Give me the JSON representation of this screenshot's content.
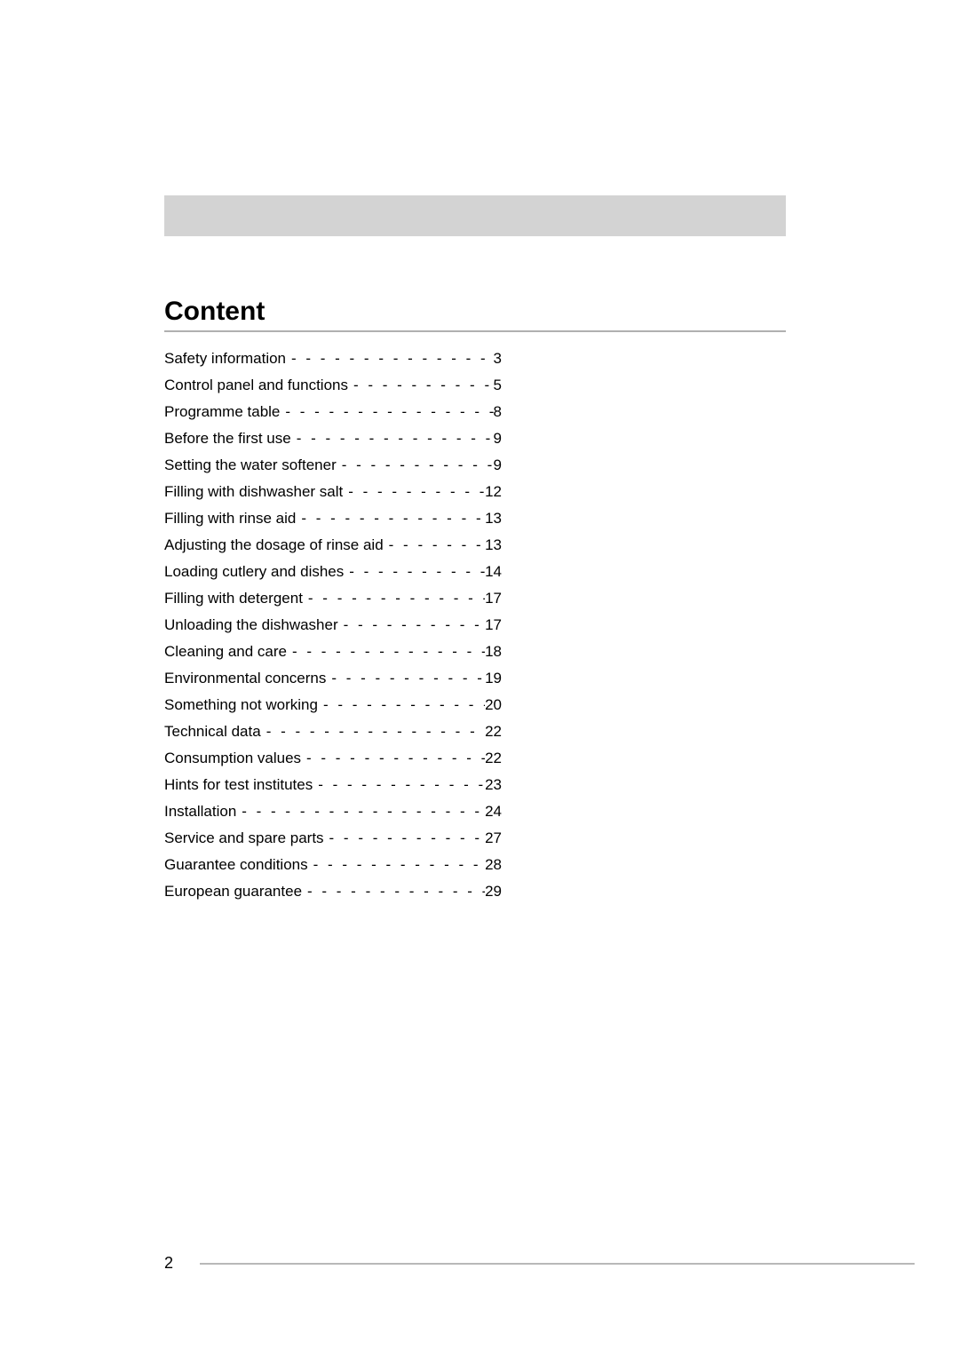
{
  "heading": "Content",
  "page_number": "2",
  "colors": {
    "bar_bg": "#d3d3d3",
    "rule": "#b0b0b0",
    "footer_rule": "#b8b8b8",
    "text": "#000000",
    "bg": "#ffffff"
  },
  "toc": [
    {
      "title": "Safety information",
      "page": "3"
    },
    {
      "title": "Control panel and functions",
      "page": "5"
    },
    {
      "title": "Programme table",
      "page": "8"
    },
    {
      "title": "Before the first use",
      "page": "9"
    },
    {
      "title": "Setting the water softener",
      "page": "9"
    },
    {
      "title": "Filling with dishwasher salt",
      "page": "12"
    },
    {
      "title": "Filling with rinse aid",
      "page": "13"
    },
    {
      "title": "Adjusting the dosage of rinse aid",
      "page": "13"
    },
    {
      "title": "Loading cutlery and dishes",
      "page": "14"
    },
    {
      "title": "Filling with detergent",
      "page": "17"
    },
    {
      "title": "Unloading the dishwasher",
      "page": "17"
    },
    {
      "title": "Cleaning and care",
      "page": "18"
    },
    {
      "title": "Environmental concerns",
      "page": "19"
    },
    {
      "title": "Something not working",
      "page": "20"
    },
    {
      "title": "Technical data",
      "page": "22"
    },
    {
      "title": "Consumption values",
      "page": "22"
    },
    {
      "title": "Hints for test institutes",
      "page": "23"
    },
    {
      "title": "Installation",
      "page": "24"
    },
    {
      "title": "Service and spare parts",
      "page": "27"
    },
    {
      "title": "Guarantee conditions",
      "page": "28"
    },
    {
      "title": "European guarantee",
      "page": "29"
    }
  ]
}
